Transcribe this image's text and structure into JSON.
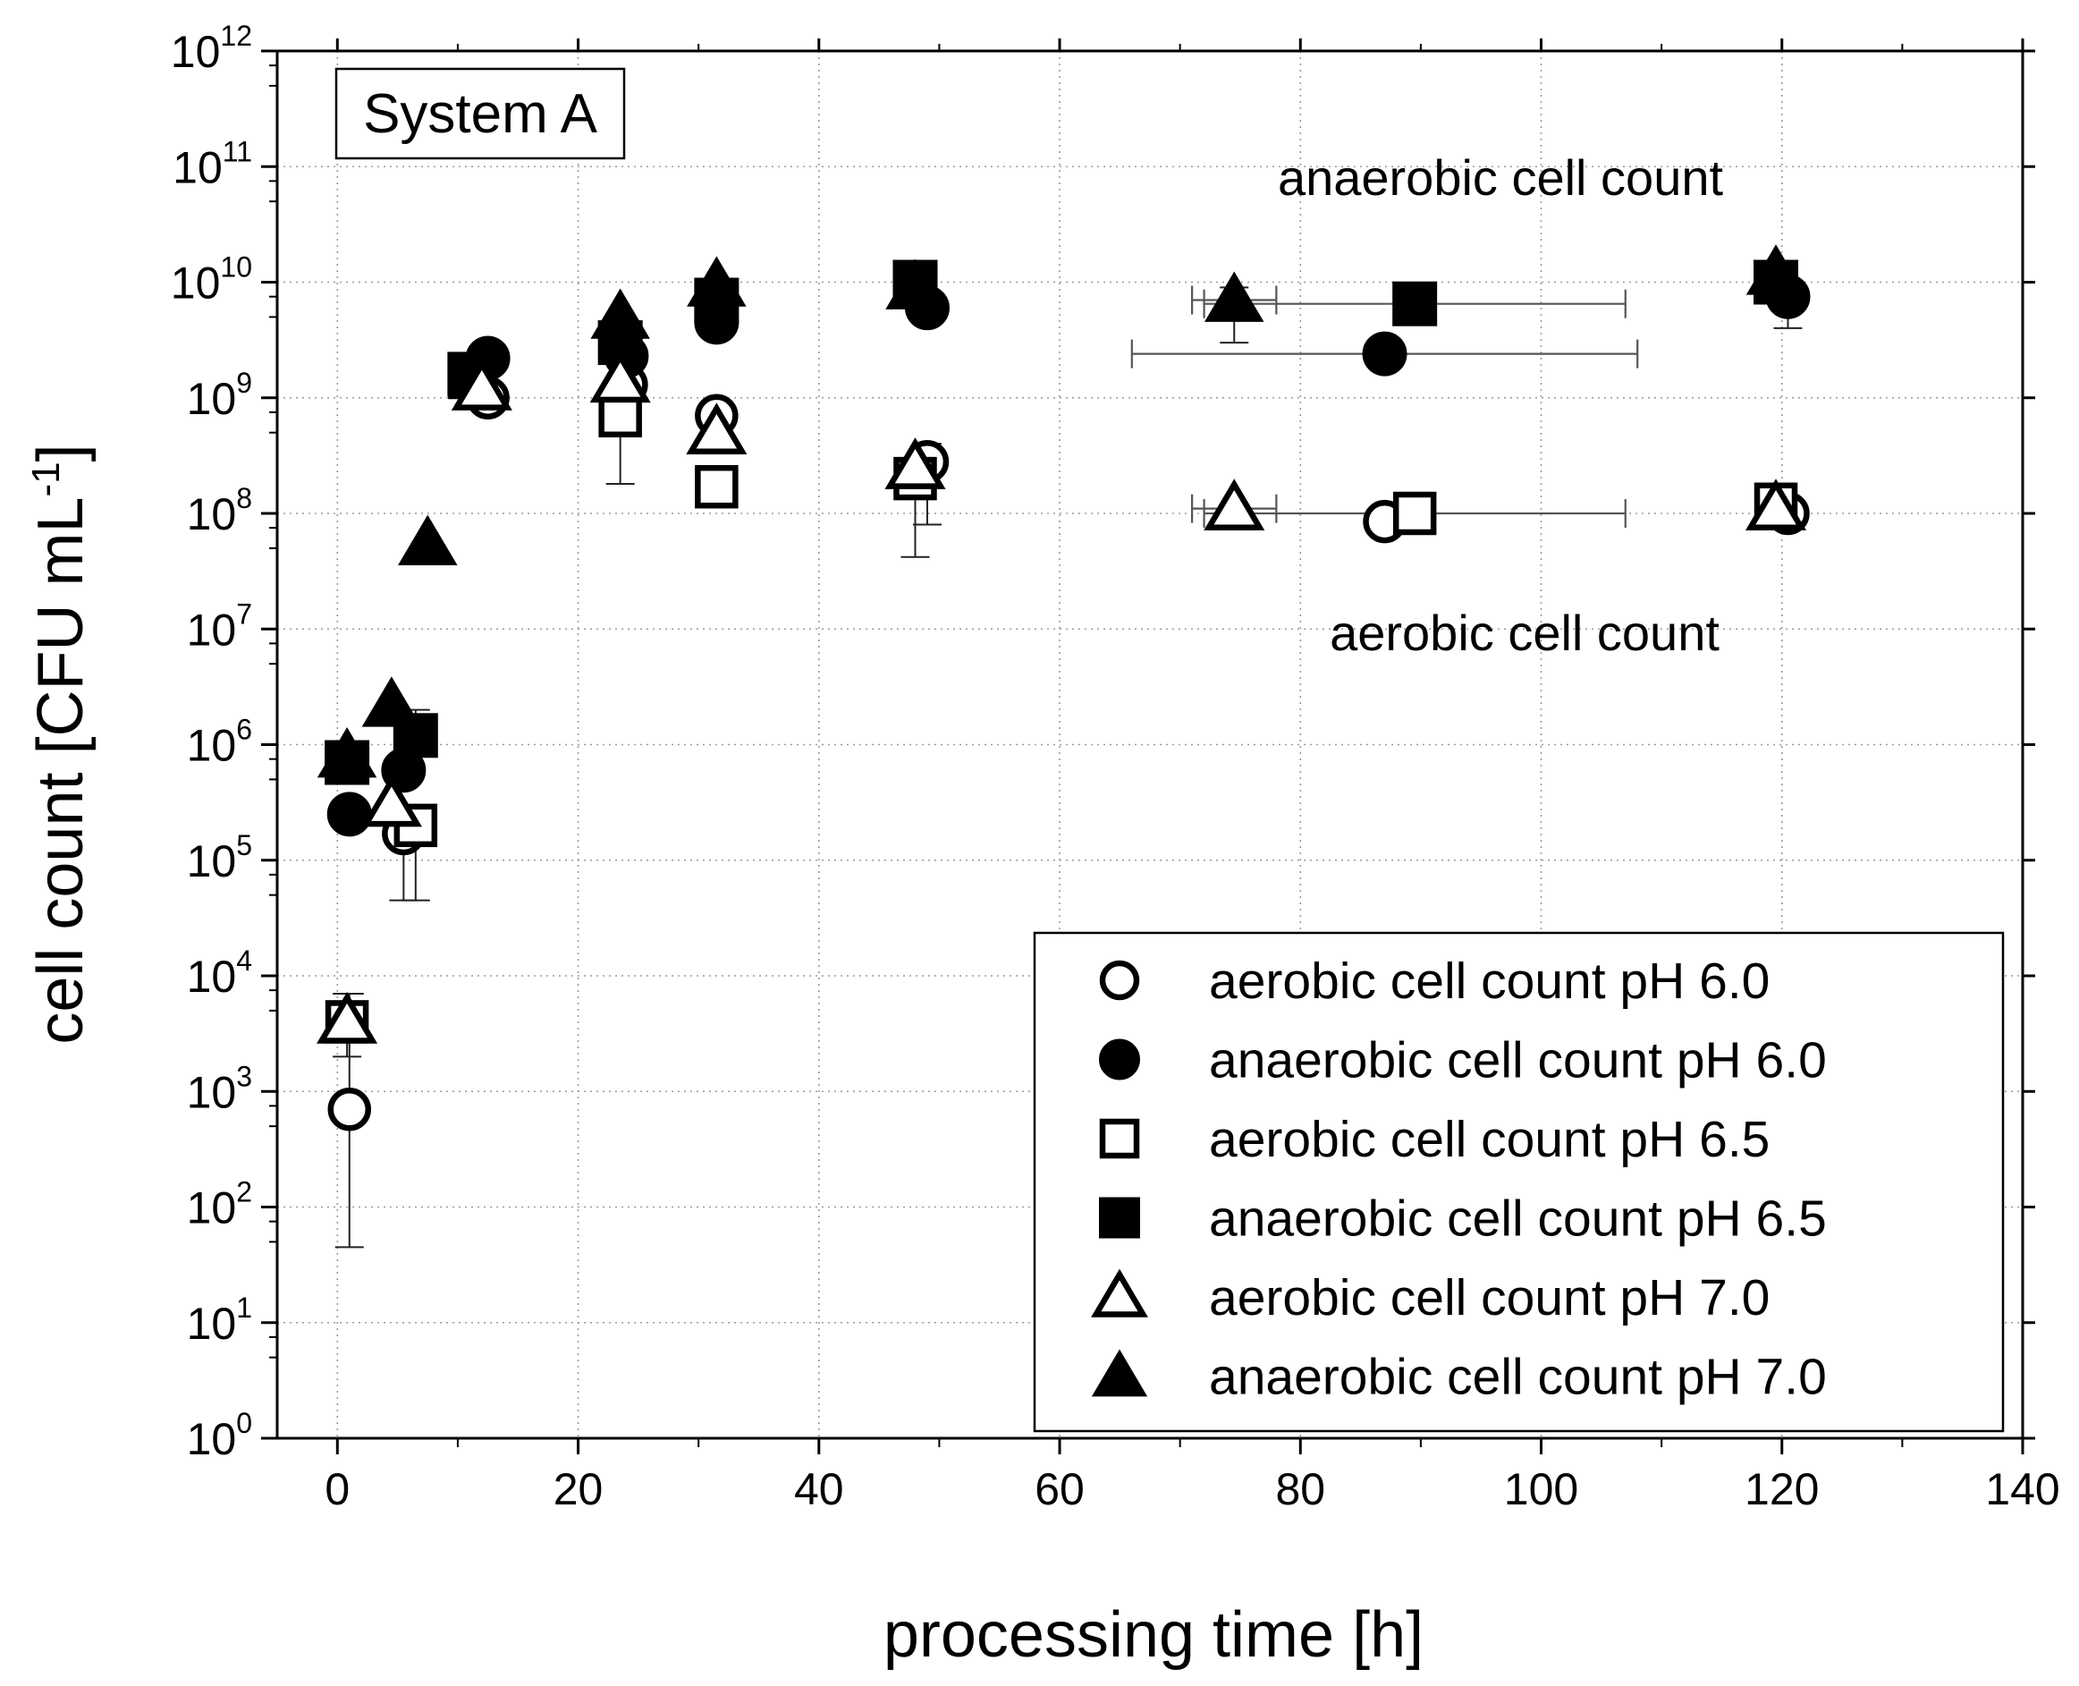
{
  "chart_data": {
    "type": "scatter",
    "title": "",
    "panel_label": "System A",
    "xlabel": "processing time [h]",
    "ylabel": {
      "main": "cell count [CFU mL",
      "sup": "-1",
      "close": "]"
    },
    "xlim": [
      -5,
      140
    ],
    "ylim_log10": [
      0,
      12
    ],
    "yscale": "log",
    "grid": true,
    "legend_position": "bottom-right",
    "x_ticks": [
      0,
      20,
      40,
      60,
      80,
      100,
      120,
      140
    ],
    "y_ticks": [
      {
        "base": "10",
        "exp": "0"
      },
      {
        "base": "10",
        "exp": "1"
      },
      {
        "base": "10",
        "exp": "2"
      },
      {
        "base": "10",
        "exp": "3"
      },
      {
        "base": "10",
        "exp": "4"
      },
      {
        "base": "10",
        "exp": "5"
      },
      {
        "base": "10",
        "exp": "6"
      },
      {
        "base": "10",
        "exp": "7"
      },
      {
        "base": "10",
        "exp": "8"
      },
      {
        "base": "10",
        "exp": "9"
      },
      {
        "base": "10",
        "exp": "10"
      },
      {
        "base": "10",
        "exp": "11"
      },
      {
        "base": "10",
        "exp": "12"
      }
    ],
    "annotations": [
      "anaerobic cell count",
      "aerobic cell count"
    ],
    "series": [
      {
        "name": "aerobic cell count pH 6.0",
        "marker": "circle",
        "filled": false,
        "color": "#000000",
        "points": [
          {
            "x": 1,
            "y": 700,
            "ylo": 45,
            "yhi": 7000
          },
          {
            "x": 5.5,
            "y": 170000,
            "ylo": 45000,
            "yhi": 300000
          },
          {
            "x": 12.5,
            "y": 1000000000
          },
          {
            "x": 24,
            "y": 1300000000
          },
          {
            "x": 31.5,
            "y": 700000000
          },
          {
            "x": 49,
            "y": 280000000,
            "ylo": 80000000,
            "yhi": 400000000
          },
          {
            "x": 87,
            "y": 85000000
          },
          {
            "x": 120.5,
            "y": 100000000
          }
        ]
      },
      {
        "name": "anaerobic cell count pH 6.0",
        "marker": "circle",
        "filled": true,
        "color": "#000000",
        "points": [
          {
            "x": 1,
            "y": 250000
          },
          {
            "x": 5.5,
            "y": 600000
          },
          {
            "x": 12.5,
            "y": 2200000000
          },
          {
            "x": 24,
            "y": 2300000000
          },
          {
            "x": 31.5,
            "y": 4500000000
          },
          {
            "x": 49,
            "y": 6000000000
          },
          {
            "x": 87,
            "y": 2400000000,
            "xlo": 66,
            "xhi": 108
          },
          {
            "x": 120.5,
            "y": 7500000000,
            "ylo": 4000000000,
            "yhi": 10000000000
          }
        ]
      },
      {
        "name": "aerobic cell count pH 6.5",
        "marker": "square",
        "filled": false,
        "color": "#000000",
        "points": [
          {
            "x": 0.8,
            "y": 4000,
            "ylo": 2000,
            "yhi": 7000
          },
          {
            "x": 6.5,
            "y": 200000,
            "ylo": 45000,
            "yhi": 300000
          },
          {
            "x": 11,
            "y": 1500000000
          },
          {
            "x": 23.5,
            "y": 700000000,
            "ylo": 180000000,
            "yhi": 1000000000
          },
          {
            "x": 31.5,
            "y": 170000000
          },
          {
            "x": 48,
            "y": 200000000,
            "ylo": 42000000,
            "yhi": 300000000
          },
          {
            "x": 89.5,
            "y": 100000000,
            "xlo": 72,
            "xhi": 107
          },
          {
            "x": 119.5,
            "y": 120000000
          }
        ]
      },
      {
        "name": "anaerobic cell count pH 6.5",
        "marker": "square",
        "filled": true,
        "color": "#000000",
        "points": [
          {
            "x": 0.8,
            "y": 700000
          },
          {
            "x": 6.5,
            "y": 1200000,
            "ylo": 800000,
            "yhi": 2000000
          },
          {
            "x": 11,
            "y": 1600000000
          },
          {
            "x": 23.5,
            "y": 3000000000
          },
          {
            "x": 31.5,
            "y": 7000000000
          },
          {
            "x": 48,
            "y": 10000000000
          },
          {
            "x": 89.5,
            "y": 6500000000,
            "xlo": 72,
            "xhi": 107
          },
          {
            "x": 119.5,
            "y": 10000000000
          }
        ]
      },
      {
        "name": "aerobic cell count pH 7.0",
        "marker": "triangle",
        "filled": false,
        "color": "#000000",
        "points": [
          {
            "x": 0.8,
            "y": 4000
          },
          {
            "x": 4.5,
            "y": 300000
          },
          {
            "x": 12,
            "y": 1200000000
          },
          {
            "x": 23.5,
            "y": 1400000000
          },
          {
            "x": 31.5,
            "y": 500000000
          },
          {
            "x": 48,
            "y": 250000000
          },
          {
            "x": 74.5,
            "y": 110000000,
            "xlo": 71,
            "xhi": 78
          },
          {
            "x": 119.5,
            "y": 110000000
          }
        ]
      },
      {
        "name": "anaerobic cell count pH 7.0",
        "marker": "triangle",
        "filled": true,
        "color": "#000000",
        "points": [
          {
            "x": 0.8,
            "y": 800000
          },
          {
            "x": 4.5,
            "y": 2200000
          },
          {
            "x": 7.5,
            "y": 55000000
          },
          {
            "x": 23.5,
            "y": 5000000000
          },
          {
            "x": 31.5,
            "y": 9500000000
          },
          {
            "x": 48,
            "y": 9000000000
          },
          {
            "x": 74.5,
            "y": 7000000000,
            "xlo": 71,
            "xhi": 78,
            "ylo": 3000000000,
            "yhi": 9000000000
          },
          {
            "x": 119.5,
            "y": 12000000000
          }
        ]
      }
    ]
  }
}
